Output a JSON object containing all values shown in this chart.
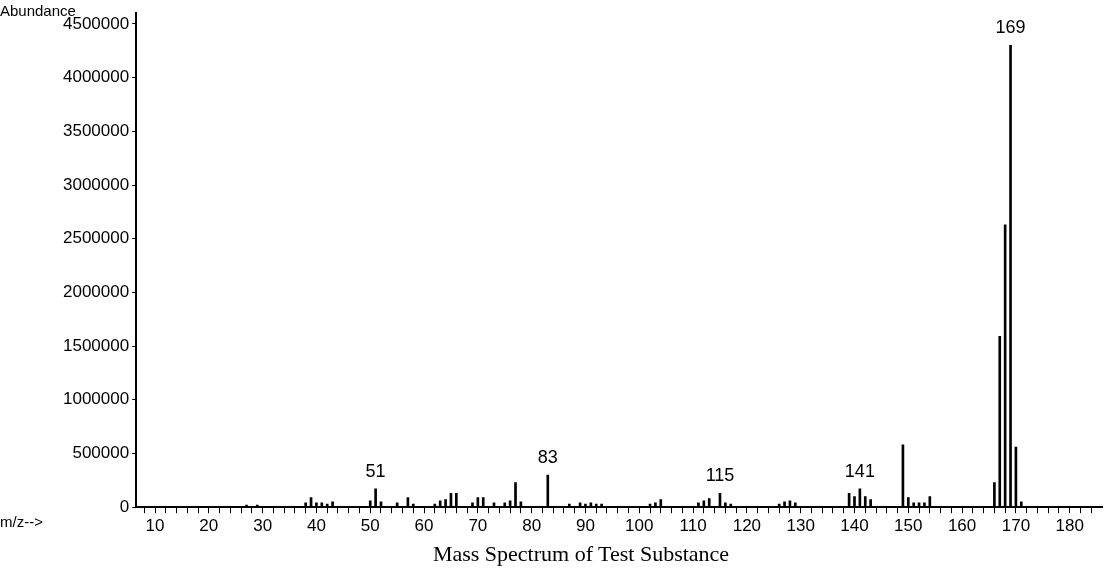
{
  "chart_data": {
    "type": "bar",
    "title": "Mass Spectrum of Test Substance",
    "xlabel": "m/z-->",
    "ylabel": "Abundance",
    "x": [
      27,
      29,
      38,
      39,
      40,
      41,
      42,
      43,
      50,
      51,
      52,
      55,
      57,
      58,
      62,
      63,
      64,
      65,
      66,
      69,
      70,
      71,
      73,
      75,
      76,
      77,
      78,
      83,
      87,
      89,
      90,
      91,
      92,
      93,
      102,
      103,
      104,
      111,
      112,
      113,
      115,
      116,
      117,
      126,
      127,
      128,
      129,
      139,
      140,
      141,
      142,
      143,
      149,
      150,
      151,
      152,
      153,
      154,
      166,
      167,
      168,
      169,
      170,
      171
    ],
    "series": [
      {
        "color": "#000000",
        "values": [
          20000,
          20000,
          40000,
          90000,
          40000,
          40000,
          30000,
          50000,
          60000,
          170000,
          50000,
          40000,
          90000,
          30000,
          30000,
          60000,
          70000,
          130000,
          130000,
          40000,
          90000,
          90000,
          40000,
          40000,
          60000,
          230000,
          50000,
          300000,
          30000,
          40000,
          30000,
          40000,
          30000,
          30000,
          30000,
          40000,
          70000,
          40000,
          60000,
          80000,
          130000,
          40000,
          30000,
          30000,
          50000,
          60000,
          40000,
          130000,
          100000,
          170000,
          100000,
          70000,
          580000,
          90000,
          40000,
          40000,
          40000,
          100000,
          230000,
          1590000,
          2630000,
          4300000,
          560000,
          50000
        ]
      }
    ],
    "annotations": [
      {
        "text": "51",
        "x": 51,
        "y": 170000
      },
      {
        "text": "83",
        "x": 83,
        "y": 300000
      },
      {
        "text": "115",
        "x": 115,
        "y": 130000
      },
      {
        "text": "141",
        "x": 141,
        "y": 170000
      },
      {
        "text": "169",
        "x": 169,
        "y": 4300000
      }
    ],
    "xlim": [
      6.5,
      186
    ],
    "xticks": [
      {
        "value": 8,
        "label": null
      },
      10,
      {
        "value": 12,
        "label": null
      },
      {
        "value": 14,
        "label": null
      },
      {
        "value": 16,
        "label": null
      },
      {
        "value": 18,
        "label": null
      },
      20,
      {
        "value": 22,
        "label": null
      },
      {
        "value": 24,
        "label": null
      },
      {
        "value": 26,
        "label": null
      },
      {
        "value": 28,
        "label": null
      },
      30,
      {
        "value": 32,
        "label": null
      },
      {
        "value": 34,
        "label": null
      },
      {
        "value": 36,
        "label": null
      },
      {
        "value": 38,
        "label": null
      },
      40,
      {
        "value": 42,
        "label": null
      },
      {
        "value": 44,
        "label": null
      },
      {
        "value": 46,
        "label": null
      },
      {
        "value": 48,
        "label": null
      },
      50,
      {
        "value": 52,
        "label": null
      },
      {
        "value": 54,
        "label": null
      },
      {
        "value": 56,
        "label": null
      },
      {
        "value": 58,
        "label": null
      },
      60,
      {
        "value": 62,
        "label": null
      },
      {
        "value": 64,
        "label": null
      },
      {
        "value": 66,
        "label": null
      },
      {
        "value": 68,
        "label": null
      },
      70,
      {
        "value": 72,
        "label": null
      },
      {
        "value": 74,
        "label": null
      },
      {
        "value": 76,
        "label": null
      },
      {
        "value": 78,
        "label": null
      },
      80,
      {
        "value": 82,
        "label": null
      },
      {
        "value": 84,
        "label": null
      },
      {
        "value": 86,
        "label": null
      },
      {
        "value": 88,
        "label": null
      },
      90,
      {
        "value": 92,
        "label": null
      },
      {
        "value": 94,
        "label": null
      },
      {
        "value": 96,
        "label": null
      },
      {
        "value": 98,
        "label": null
      },
      100,
      {
        "value": 102,
        "label": null
      },
      {
        "value": 104,
        "label": null
      },
      {
        "value": 106,
        "label": null
      },
      {
        "value": 108,
        "label": null
      },
      110,
      {
        "value": 112,
        "label": null
      },
      {
        "value": 114,
        "label": null
      },
      {
        "value": 116,
        "label": null
      },
      {
        "value": 118,
        "label": null
      },
      120,
      {
        "value": 122,
        "label": null
      },
      {
        "value": 124,
        "label": null
      },
      {
        "value": 126,
        "label": null
      },
      {
        "value": 128,
        "label": null
      },
      130,
      {
        "value": 132,
        "label": null
      },
      {
        "value": 134,
        "label": null
      },
      {
        "value": 136,
        "label": null
      },
      {
        "value": 138,
        "label": null
      },
      140,
      {
        "value": 142,
        "label": null
      },
      {
        "value": 144,
        "label": null
      },
      {
        "value": 146,
        "label": null
      },
      {
        "value": 148,
        "label": null
      },
      150,
      {
        "value": 152,
        "label": null
      },
      {
        "value": 154,
        "label": null
      },
      {
        "value": 156,
        "label": null
      },
      {
        "value": 158,
        "label": null
      },
      160,
      {
        "value": 162,
        "label": null
      },
      {
        "value": 164,
        "label": null
      },
      {
        "value": 166,
        "label": null
      },
      {
        "value": 168,
        "label": null
      },
      170,
      {
        "value": 172,
        "label": null
      },
      {
        "value": 174,
        "label": null
      },
      {
        "value": 176,
        "label": null
      },
      {
        "value": 178,
        "label": null
      },
      180,
      {
        "value": 182,
        "label": null
      },
      {
        "value": 184,
        "label": null
      }
    ],
    "ylim": [
      0,
      4600000
    ],
    "yticks": [
      0,
      500000,
      1000000,
      1500000,
      2000000,
      2500000,
      3000000,
      3500000,
      4000000,
      4500000
    ]
  }
}
